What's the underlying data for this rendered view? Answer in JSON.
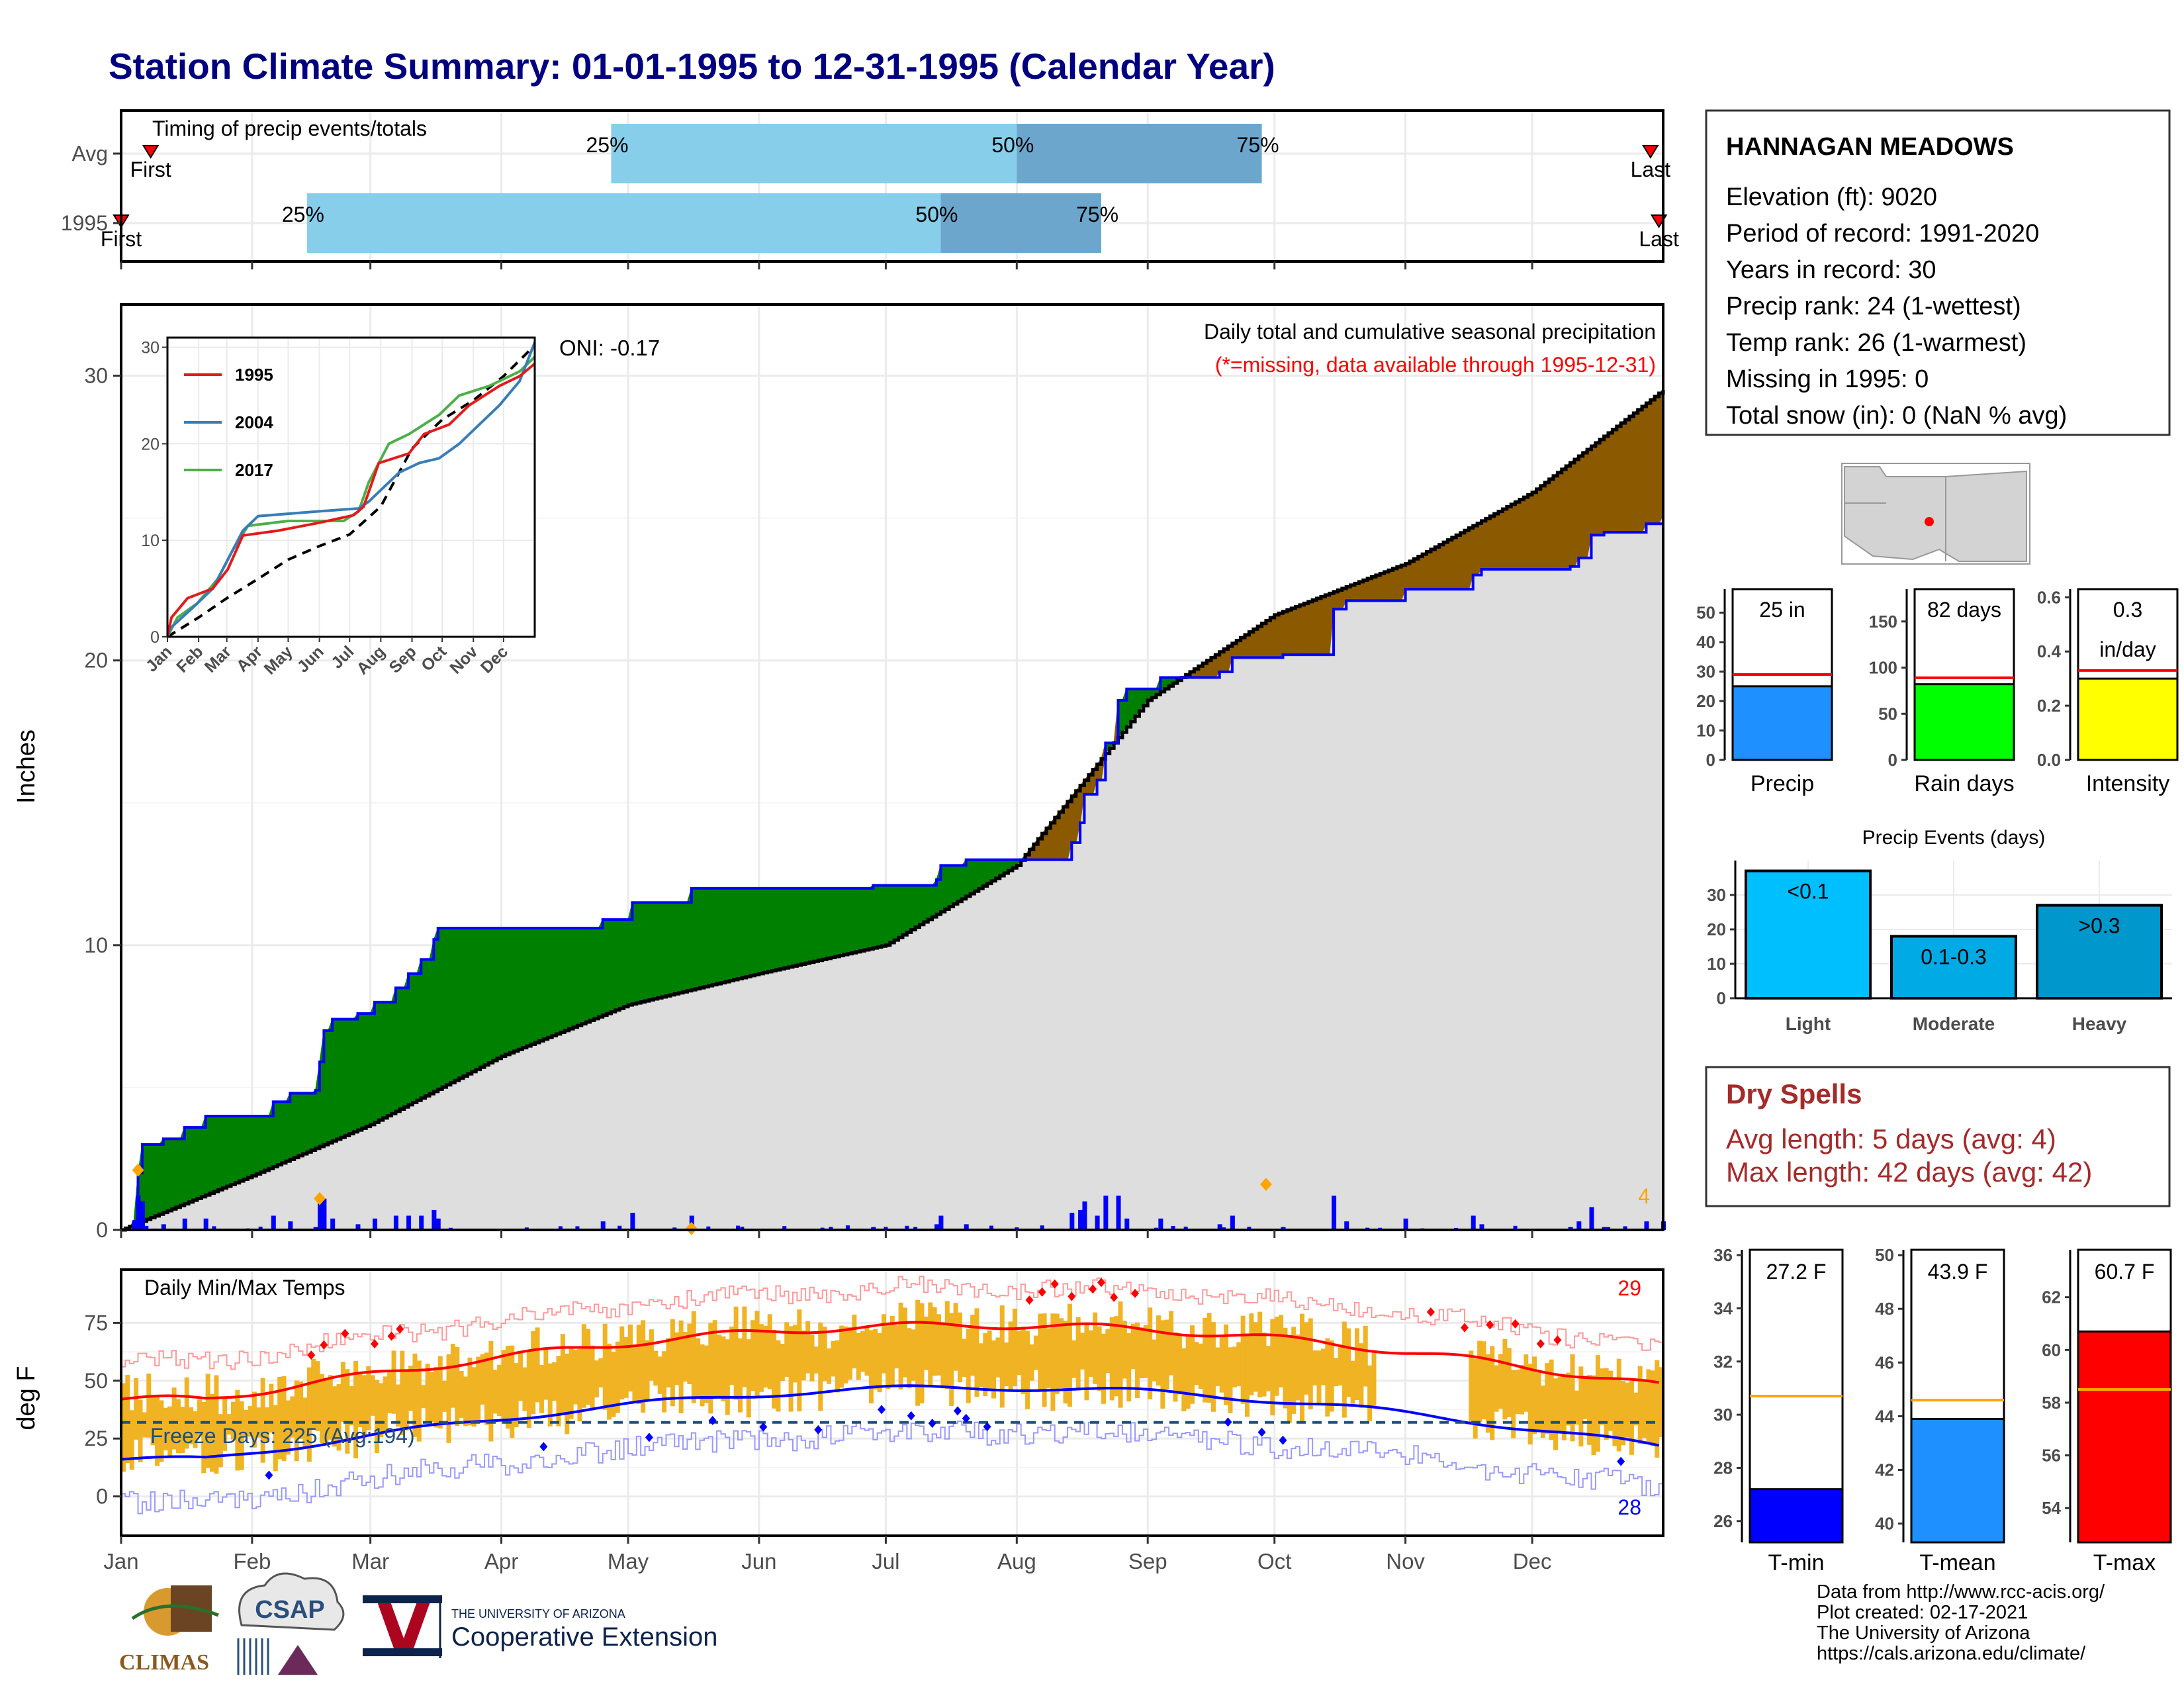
{
  "title": "Station Climate Summary: 01-01-1995 to 12-31-1995 (Calendar Year)",
  "timing_panel": {
    "label": "Timing of precip events/totals",
    "rows": [
      {
        "name": "Avg",
        "first_label": "First",
        "last_label": "Last",
        "q25": "2025-04-27",
        "q50": "2025-08-01",
        "q75": "2025-09-28",
        "first": "2025-01-08",
        "last": "2025-12-29"
      },
      {
        "name": "1995",
        "first_label": "First",
        "last_label": "Last",
        "q25": "2025-02-14",
        "q50": "2025-07-14",
        "q75": "2025-08-21",
        "first": "2025-01-01",
        "last": "2025-12-31"
      }
    ],
    "pct_labels": [
      "25%",
      "50%",
      "75%"
    ],
    "colors": {
      "light": "#87ceeb",
      "dark": "#6ca6cd",
      "marker": "#ff0000"
    }
  },
  "main_panel": {
    "ylabel": "Inches",
    "yticks": [
      0,
      10,
      20,
      30
    ],
    "ylim": [
      0,
      32.5
    ],
    "header": "Daily total and cumulative seasonal precipitation",
    "subheader": "(*=missing, data available through 1995-12-31)",
    "oni": "ONI: -0.17",
    "label_4": "4",
    "colors": {
      "above": "#008000",
      "below": "#8b5a00",
      "normal_fill": "#dedede",
      "line_1995": "#0000ff",
      "line_normal": "#000000",
      "bars": "#0000ff",
      "diamond": "#ffa500"
    }
  },
  "inset": {
    "yticks": [
      0,
      10,
      20,
      30
    ],
    "ylim": [
      0,
      31
    ],
    "months": [
      "Jan",
      "Feb",
      "Mar",
      "Apr",
      "May",
      "Jun",
      "Jul",
      "Aug",
      "Sep",
      "Oct",
      "Nov",
      "Dec"
    ],
    "legend": [
      {
        "name": "1995",
        "color": "#e41a1c"
      },
      {
        "name": "2004",
        "color": "#377eb8"
      },
      {
        "name": "2017",
        "color": "#4daf4a"
      }
    ]
  },
  "temp_panel": {
    "label": "Daily Min/Max Temps",
    "ylabel": "deg F",
    "yticks": [
      0,
      25,
      50,
      75
    ],
    "ylim": [
      -17,
      98
    ],
    "freeze_label": "Freeze Days: 225 (Avg:194)",
    "freeze_line": 32,
    "label_29": "29",
    "label_28": "28",
    "colors": {
      "bars": "#f0b323",
      "max_norm": "#ff0000",
      "min_norm": "#0000ff",
      "freeze": "#1f4e79",
      "hot": "#ff0000",
      "cold": "#0000ff"
    }
  },
  "month_axis": [
    "Jan",
    "Feb",
    "Mar",
    "Apr",
    "May",
    "Jun",
    "Jul",
    "Aug",
    "Sep",
    "Oct",
    "Nov",
    "Dec"
  ],
  "station": {
    "name": "HANNAGAN MEADOWS",
    "lines": [
      "Elevation (ft): 9020",
      "Period of record: 1991-2020",
      "Years in record: 30",
      "Precip rank: 24 (1-wettest)",
      "Temp rank: 26 (1-warmest)",
      "Missing in 1995: 0",
      "Total snow (in): 0 (NaN % avg)"
    ]
  },
  "summary_bars": [
    {
      "label": "Precip",
      "value": 25,
      "norm": 29,
      "text": "25 in",
      "ymax": 58,
      "yticks": [
        "0",
        "10",
        "20",
        "30",
        "40",
        "50"
      ],
      "tickvals": [
        0,
        10,
        20,
        30,
        40,
        50
      ],
      "color": "#1e90ff"
    },
    {
      "label": "Rain days",
      "value": 82,
      "norm": 89,
      "text": "82 days",
      "ymax": 185,
      "yticks": [
        "0",
        "50",
        "100",
        "150"
      ],
      "tickvals": [
        0,
        50,
        100,
        150
      ],
      "color": "#00ff00"
    },
    {
      "label": "Intensity",
      "value": 0.3,
      "norm": 0.33,
      "text": "0.3",
      "text2": "in/day",
      "ymax": 0.63,
      "yticks": [
        "0.0",
        "0.2",
        "0.4",
        "0.6"
      ],
      "tickvals": [
        0,
        0.2,
        0.4,
        0.6
      ],
      "color": "#ffff00"
    }
  ],
  "events": {
    "title": "Precip Events (days)",
    "categories": [
      "Light",
      "Moderate",
      "Heavy"
    ],
    "values": [
      37,
      18,
      27
    ],
    "labels": [
      "<0.1",
      "0.1-0.3",
      ">0.3"
    ],
    "yticks": [
      0,
      10,
      20,
      30
    ],
    "ymax": 40,
    "colors": [
      "#00bfff",
      "#00aae5",
      "#0098cc"
    ]
  },
  "dry_spells": {
    "title": "Dry Spells",
    "avg": "Avg length: 5 days (avg: 4)",
    "max": "Max length: 42 days (avg: 42)",
    "color": "#a52a2a"
  },
  "temp_bars": [
    {
      "label": "T-min",
      "value": 27.2,
      "norm": 30.7,
      "text": "27.2 F",
      "ymin": 25.2,
      "ymax": 36.2,
      "tickvals": [
        26,
        28,
        30,
        32,
        34,
        36
      ],
      "color": "#0000ff"
    },
    {
      "label": "T-mean",
      "value": 43.9,
      "norm": 44.6,
      "text": "43.9 F",
      "ymin": 39.3,
      "ymax": 50.2,
      "tickvals": [
        40,
        42,
        44,
        46,
        48,
        50
      ],
      "color": "#1e90ff"
    },
    {
      "label": "T-max",
      "value": 60.7,
      "norm": 58.5,
      "text": "60.7 F",
      "ymin": 52.7,
      "ymax": 63.8,
      "tickvals": [
        54,
        56,
        58,
        60,
        62
      ],
      "color": "#ff0000"
    }
  ],
  "footer": [
    "Data from http://www.rcc-acis.org/",
    "Plot created: 02-17-2021",
    "The University of Arizona",
    "https://cals.arizona.edu/climate/"
  ],
  "logos": {
    "climas": "CLIMAS",
    "csap": "CSAP",
    "ua_small": "THE UNIVERSITY OF ARIZONA",
    "ua_big": "Cooperative Extension"
  }
}
